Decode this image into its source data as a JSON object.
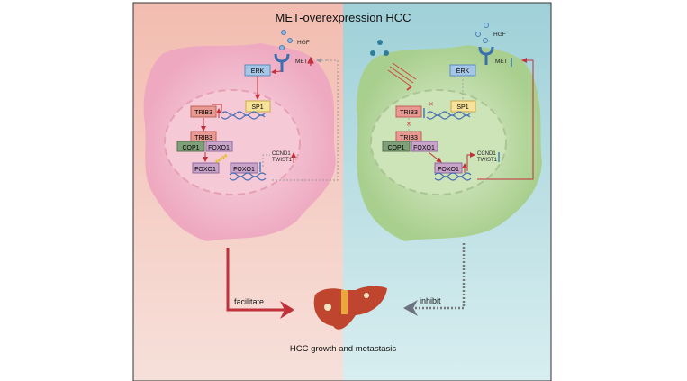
{
  "title": "MET-overexpression HCC",
  "colors": {
    "left_bg": "#f4c4b8",
    "right_bg": "#a9d6dc",
    "left_cell": "#f0b3c6",
    "right_cell": "#b8d6a0",
    "arrow_red": "#c0313b",
    "arrow_grey": "#6b7280",
    "up_arrow": "#c0313b",
    "down_arrow": "#2a6fb5"
  },
  "left": {
    "hgf": "HGF",
    "met": "MET",
    "erk": "ERK",
    "sp1": "SP1",
    "trib3": "TRIB3",
    "trib3_complex": "TRIB3",
    "cop1": "COP1",
    "foxo1_complex": "FOXO1",
    "foxo1_ub": "FOXO1",
    "foxo1_nuc": "FOXO1",
    "ccnd1": "CCND1",
    "twist1": "TWIST1",
    "outcome": "facilitate"
  },
  "right": {
    "hgf": "HGF",
    "met": "MET",
    "erk": "ERK",
    "sp1": "SP1",
    "trib3": "TRIB3",
    "trib3_complex": "TRIB3",
    "cop1": "COP1",
    "foxo1_complex": "FOXO1",
    "foxo1_nuc": "FOXO1",
    "ccnd1": "CCND1",
    "twist1": "TWIST1",
    "outcome": "inhibit"
  },
  "footer": "HCC growth and metastasis"
}
